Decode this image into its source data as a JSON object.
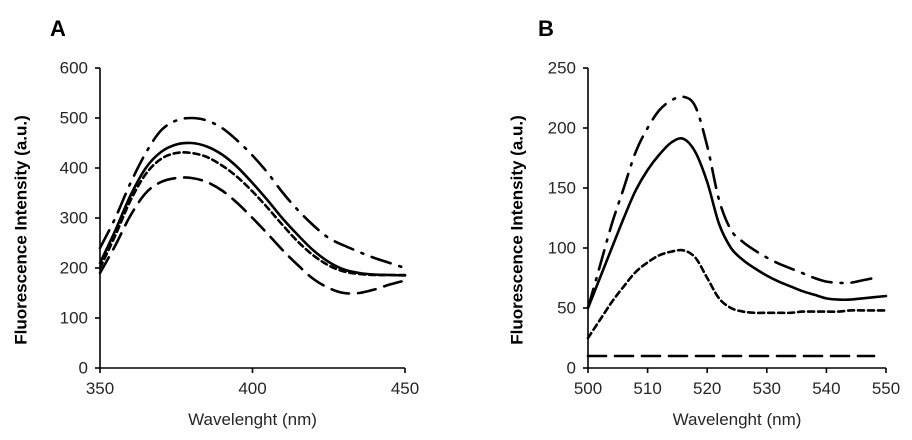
{
  "chart_data": [
    {
      "panel": "A",
      "type": "line",
      "title": "",
      "xlabel": "Wavelenght (nm)",
      "ylabel": "Fluorescence Intensity (a.u.)",
      "xlim": [
        350,
        450
      ],
      "ylim": [
        0,
        600
      ],
      "xticks": [
        350,
        400,
        450
      ],
      "yticks": [
        0,
        100,
        200,
        300,
        400,
        500,
        600
      ],
      "grid": false,
      "legend": "none",
      "x": [
        350,
        355,
        360,
        365,
        370,
        375,
        380,
        385,
        390,
        395,
        400,
        405,
        410,
        415,
        420,
        425,
        430,
        435,
        440,
        445,
        450
      ],
      "series": [
        {
          "name": "dash-dot",
          "style": "dashdot",
          "values": [
            240,
            300,
            370,
            430,
            475,
            495,
            500,
            495,
            480,
            455,
            425,
            390,
            350,
            315,
            285,
            260,
            245,
            232,
            220,
            210,
            200
          ]
        },
        {
          "name": "solid",
          "style": "solid",
          "values": [
            210,
            275,
            345,
            400,
            432,
            447,
            450,
            443,
            427,
            402,
            370,
            335,
            298,
            265,
            235,
            212,
            197,
            190,
            187,
            186,
            185
          ]
        },
        {
          "name": "short-dash",
          "style": "shortdash",
          "values": [
            200,
            265,
            335,
            388,
            418,
            430,
            430,
            422,
            405,
            382,
            353,
            320,
            285,
            252,
            225,
            205,
            193,
            188,
            186,
            186,
            186
          ]
        },
        {
          "name": "long-dash",
          "style": "longdash",
          "values": [
            190,
            245,
            305,
            350,
            372,
            380,
            380,
            372,
            355,
            330,
            300,
            268,
            235,
            205,
            178,
            160,
            150,
            150,
            157,
            167,
            175
          ]
        }
      ]
    },
    {
      "panel": "B",
      "type": "line",
      "title": "",
      "xlabel": "Wavelenght (nm)",
      "ylabel": "Fluorescence Intensity (a.u.)",
      "xlim": [
        500,
        550
      ],
      "ylim": [
        0,
        250
      ],
      "xticks": [
        500,
        510,
        520,
        530,
        540,
        550
      ],
      "yticks": [
        0,
        50,
        100,
        150,
        200,
        250
      ],
      "grid": false,
      "legend": "none",
      "x": [
        500,
        502,
        504,
        506,
        508,
        510,
        512,
        514,
        516,
        518,
        520,
        522,
        524,
        526,
        528,
        530,
        532,
        534,
        536,
        538,
        540,
        542,
        544,
        546,
        548,
        550
      ],
      "series": [
        {
          "name": "dash-dot",
          "style": "dashdot",
          "values": [
            50,
            85,
            120,
            150,
            180,
            200,
            215,
            223,
            226,
            218,
            185,
            140,
            115,
            105,
            98,
            92,
            87,
            83,
            79,
            75,
            72,
            71,
            71,
            73,
            75,
            null
          ]
        },
        {
          "name": "solid",
          "style": "solid",
          "values": [
            50,
            75,
            100,
            125,
            148,
            165,
            178,
            188,
            191,
            180,
            155,
            120,
            100,
            90,
            83,
            77,
            72,
            68,
            64,
            61,
            58,
            57,
            57,
            58,
            59,
            60
          ]
        },
        {
          "name": "short-dash",
          "style": "shortdash",
          "values": [
            25,
            40,
            55,
            68,
            80,
            88,
            94,
            97,
            98,
            92,
            75,
            58,
            50,
            47,
            46,
            46,
            46,
            46,
            47,
            47,
            47,
            47,
            48,
            48,
            48,
            48
          ]
        },
        {
          "name": "long-dash",
          "style": "longdash",
          "values": [
            10,
            10,
            10,
            10,
            10,
            10,
            10,
            10,
            10,
            10,
            10,
            10,
            10,
            10,
            10,
            10,
            10,
            10,
            10,
            10,
            10,
            10,
            10,
            10,
            10,
            null
          ]
        }
      ]
    }
  ]
}
